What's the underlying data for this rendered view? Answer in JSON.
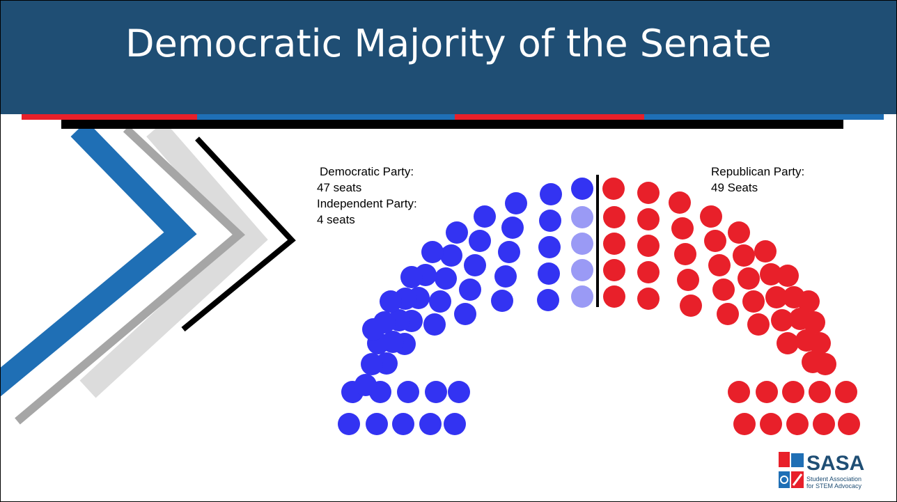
{
  "slide": {
    "title": "Democratic Majority of the Senate",
    "colors": {
      "title_bar": "#1f4e74",
      "democratic": "#3333f2",
      "independent": "#9a9af5",
      "republican": "#e8202a",
      "stripe_red": "#e8202a",
      "stripe_blue": "#1f6fb5"
    }
  },
  "labels": {
    "democratic_line1": "Democratic Party:",
    "democratic_line2": "47 seats",
    "independent_line1": "Independent Party:",
    "independent_line2": "4 seats",
    "republican_line1": "Republican Party:",
    "republican_line2": "49 Seats"
  },
  "seats": {
    "democratic": 47,
    "independent": 4,
    "republican": 49
  },
  "logo": {
    "name": "SASA",
    "subtitle_line1": "Student Association",
    "subtitle_line2": "for STEM Advocacy"
  }
}
